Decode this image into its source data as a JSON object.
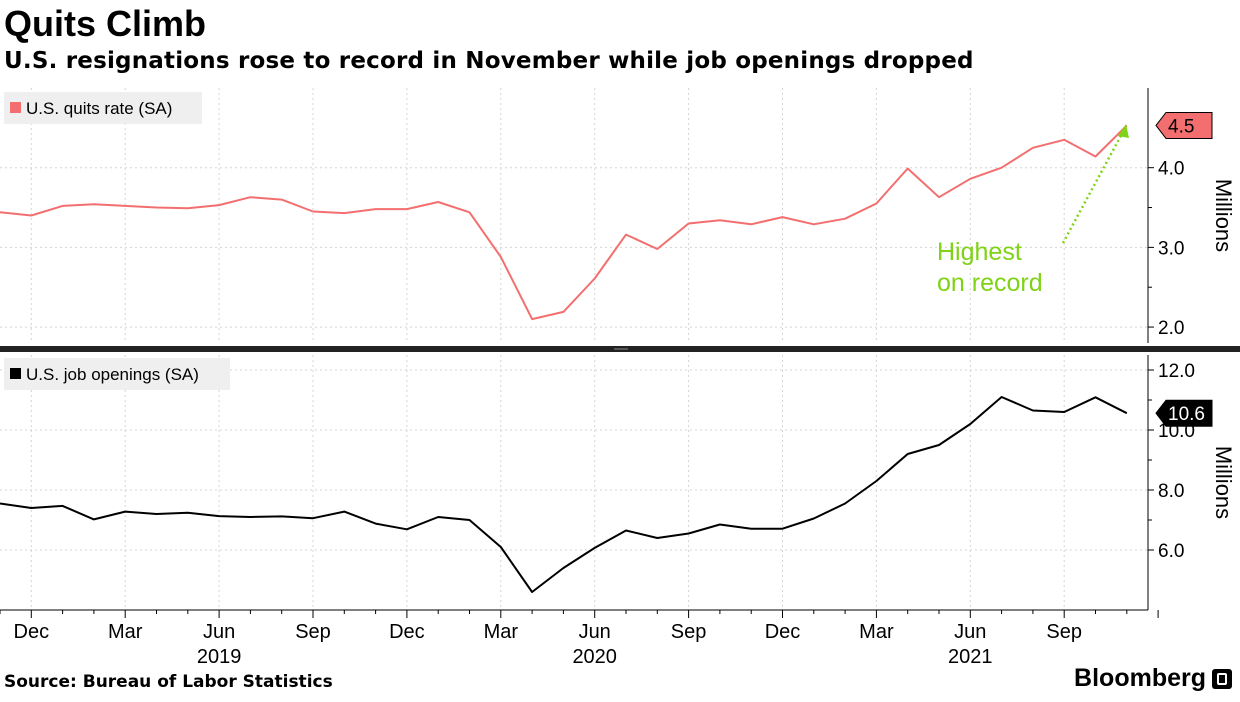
{
  "header": {
    "title": "Quits Climb",
    "subtitle": "U.S. resignations rose to record in November while job openings dropped"
  },
  "footer": {
    "source": "Source: Bureau of Labor Statistics",
    "brand": "Bloomberg"
  },
  "colors": {
    "quits": "#f36f6f",
    "openings": "#000000",
    "annotation": "#7fd316",
    "grid": "#d4d4d4",
    "legend_bg": "#efefef"
  },
  "chart_data": [
    {
      "type": "line",
      "legend": "U.S. quits rate (SA)",
      "ylabel": "Millions",
      "ylim": [
        1.8,
        5.0
      ],
      "yticks": [
        2.0,
        3.0,
        4.0
      ],
      "last_value_label": "4.5",
      "annotation": [
        "Highest",
        "on record"
      ],
      "x": [
        "2018-11",
        "2018-12",
        "2019-01",
        "2019-02",
        "2019-03",
        "2019-04",
        "2019-05",
        "2019-06",
        "2019-07",
        "2019-08",
        "2019-09",
        "2019-10",
        "2019-11",
        "2019-12",
        "2020-01",
        "2020-02",
        "2020-03",
        "2020-04",
        "2020-05",
        "2020-06",
        "2020-07",
        "2020-08",
        "2020-09",
        "2020-10",
        "2020-11",
        "2020-12",
        "2021-01",
        "2021-02",
        "2021-03",
        "2021-04",
        "2021-05",
        "2021-06",
        "2021-07",
        "2021-08",
        "2021-09",
        "2021-10",
        "2021-11"
      ],
      "values": [
        3.44,
        3.4,
        3.52,
        3.54,
        3.52,
        3.5,
        3.49,
        3.53,
        3.63,
        3.6,
        3.45,
        3.43,
        3.48,
        3.48,
        3.57,
        3.44,
        2.88,
        2.1,
        2.19,
        2.61,
        3.16,
        2.98,
        3.3,
        3.34,
        3.29,
        3.38,
        3.29,
        3.36,
        3.55,
        3.99,
        3.63,
        3.86,
        4.0,
        4.25,
        4.35,
        4.14,
        4.53
      ]
    },
    {
      "type": "line",
      "legend": "U.S. job openings (SA)",
      "ylabel": "Millions",
      "ylim": [
        4.0,
        12.5
      ],
      "yticks": [
        6.0,
        8.0,
        10.0,
        12.0
      ],
      "last_value_label": "10.6",
      "x": [
        "2018-11",
        "2018-12",
        "2019-01",
        "2019-02",
        "2019-03",
        "2019-04",
        "2019-05",
        "2019-06",
        "2019-07",
        "2019-08",
        "2019-09",
        "2019-10",
        "2019-11",
        "2019-12",
        "2020-01",
        "2020-02",
        "2020-03",
        "2020-04",
        "2020-05",
        "2020-06",
        "2020-07",
        "2020-08",
        "2020-09",
        "2020-10",
        "2020-11",
        "2020-12",
        "2021-01",
        "2021-02",
        "2021-03",
        "2021-04",
        "2021-05",
        "2021-06",
        "2021-07",
        "2021-08",
        "2021-09",
        "2021-10",
        "2021-11"
      ],
      "values": [
        7.55,
        7.4,
        7.47,
        7.02,
        7.28,
        7.2,
        7.24,
        7.13,
        7.1,
        7.12,
        7.06,
        7.28,
        6.88,
        6.69,
        7.1,
        7.0,
        6.1,
        4.6,
        5.4,
        6.07,
        6.65,
        6.4,
        6.55,
        6.85,
        6.71,
        6.71,
        7.05,
        7.55,
        8.3,
        9.2,
        9.5,
        10.2,
        11.1,
        10.65,
        10.6,
        11.09,
        10.56
      ]
    }
  ],
  "x_axis": {
    "months": [
      "Dec",
      "Mar",
      "Jun",
      "Sep",
      "Dec",
      "Mar",
      "Jun",
      "Sep",
      "Dec",
      "Mar",
      "Jun",
      "Sep"
    ],
    "years": [
      "2019",
      "2020",
      "2021"
    ]
  }
}
